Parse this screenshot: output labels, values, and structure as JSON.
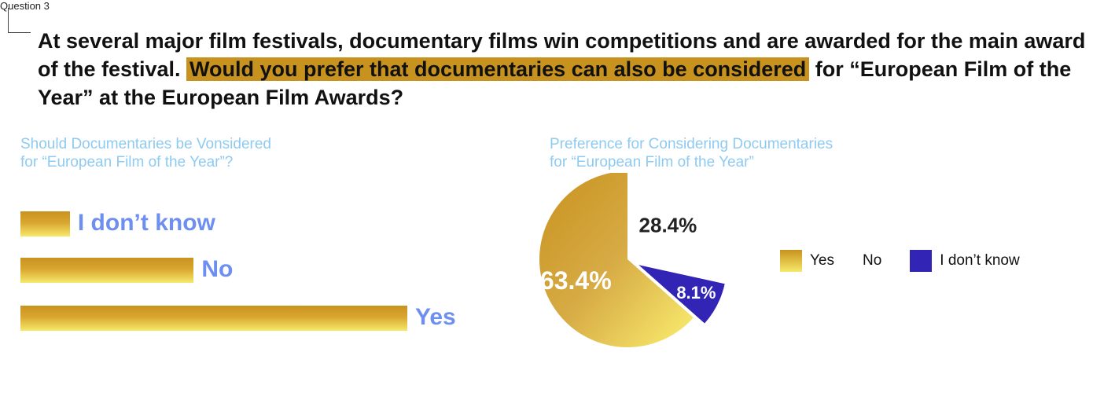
{
  "question_label": "Question 3",
  "question": {
    "before": "At several major film festivals, documentary films win competitions and are awarded for the main award of the festival. ",
    "highlight": "Would you prefer that documentaries can also be considered",
    "after": " for “European Film of the Year” at the European Film Awards?"
  },
  "colors": {
    "gold": "#c8921e",
    "gold_light": "#f6e96a",
    "blue": "#3224b4",
    "label_blue": "#6e8ff0",
    "subtitle": "#8fcaf0"
  },
  "chart_data": [
    {
      "type": "bar",
      "orientation": "horizontal",
      "title_lines": [
        "Should Documentaries be Vonsidered",
        "for “European Film of the Year”?"
      ],
      "categories": [
        "I don’t know",
        "No",
        "Yes"
      ],
      "values": [
        8.1,
        28.4,
        63.4
      ],
      "xlim": [
        0,
        63.4
      ]
    },
    {
      "type": "pie",
      "title_lines": [
        "Preference for Considering Documentaries",
        "for “European Film of the Year”"
      ],
      "slices": [
        {
          "label": "Yes",
          "value": 63.4,
          "display": "63.4%",
          "color": "#d4a437"
        },
        {
          "label": "No",
          "value": 28.4,
          "display": "28.4%",
          "color": "#ffffff"
        },
        {
          "label": "I don’t know",
          "value": 8.1,
          "display": "8.1%",
          "color": "#3224b4"
        }
      ],
      "legend": [
        "Yes",
        "No",
        "I don’t know"
      ],
      "legend_position": "right"
    }
  ]
}
